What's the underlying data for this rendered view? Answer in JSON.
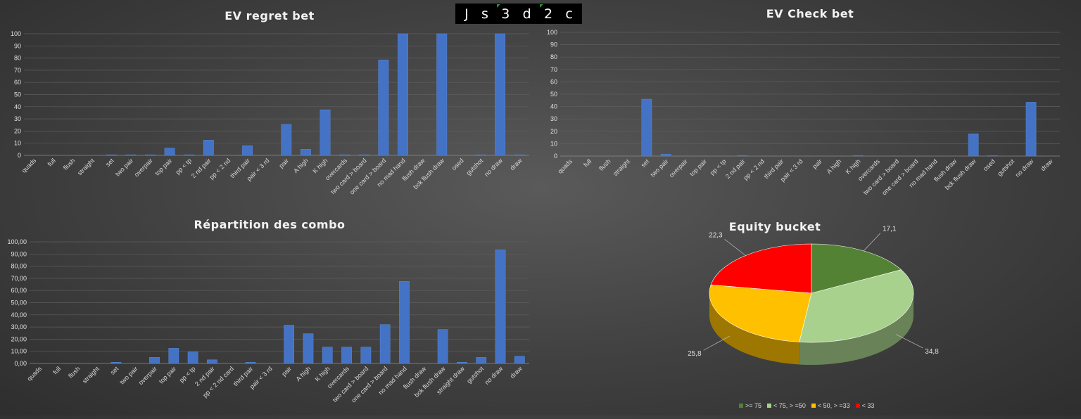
{
  "board": {
    "cards": [
      "J",
      "s",
      "3",
      "d",
      "2",
      "c"
    ]
  },
  "charts": [
    {
      "type": "bar",
      "title": "EV regret bet",
      "categories": [
        "quads",
        "full",
        "flush",
        "straight",
        "set",
        "two pair",
        "overpair",
        "top pair",
        "pp < tp",
        "2 nd pair",
        "pp < 2 nd",
        "third pair",
        "pair < 3 rd",
        "pair",
        "A high",
        "K high",
        "overcards",
        "two card > board",
        "one card > board",
        "no mad hand",
        "flush draw",
        "bck flush draw",
        "osed",
        "gutshot",
        "no draw",
        "draw"
      ],
      "values": [
        0,
        0,
        0,
        0,
        0.5,
        0.5,
        0.5,
        6,
        0.5,
        12.5,
        0,
        8,
        0,
        25.5,
        5,
        37.5,
        0.5,
        0.5,
        78.5,
        100,
        0,
        100,
        0,
        0.5,
        100,
        0.5
      ],
      "ylim": [
        0,
        100
      ],
      "yticks": [
        "0",
        "10",
        "20",
        "30",
        "40",
        "50",
        "60",
        "70",
        "80",
        "90",
        "100"
      ],
      "bar_color": "#4472c4"
    },
    {
      "type": "bar",
      "title": "EV Check bet",
      "categories": [
        "quads",
        "full",
        "flush",
        "straight",
        "set",
        "two pair",
        "overpair",
        "top pair",
        "pp < tp",
        "2 nd pair",
        "pp < 2 nd",
        "third pair",
        "pair < 3 rd",
        "pair",
        "A high",
        "K high",
        "overcards",
        "two card > board",
        "one card > board",
        "no mad hand",
        "flush draw",
        "bck flush draw",
        "osed",
        "gutshot",
        "no draw",
        "draw"
      ],
      "values": [
        0,
        0,
        0,
        0,
        46,
        1.5,
        0,
        0,
        0,
        0.3,
        0,
        0,
        0,
        0,
        0,
        0.3,
        0,
        0,
        0,
        0,
        0,
        18,
        0.3,
        0,
        43.5,
        0
      ],
      "ylim": [
        0,
        100
      ],
      "yticks": [
        "0",
        "10",
        "20",
        "30",
        "40",
        "50",
        "60",
        "70",
        "80",
        "90",
        "100"
      ],
      "bar_color": "#4472c4"
    },
    {
      "type": "bar",
      "title": "Répartition des combo",
      "categories": [
        "quads",
        "full",
        "flush",
        "straight",
        "set",
        "two pair",
        "overpair",
        "top pair",
        "pp < tp",
        "2 nd pair",
        "pp < 2 nd card",
        "third pair",
        "pair < 3 rd",
        "pair",
        "A high",
        "K high",
        "overcards",
        "two card > board",
        "one card > board",
        "no mad hand",
        "flush draw",
        "bck flush draw",
        "straight draw",
        "gutshot",
        "no draw",
        "draw"
      ],
      "values": [
        0,
        0,
        0,
        0,
        1,
        0,
        5,
        12.5,
        9.5,
        3,
        0,
        1,
        0,
        31.5,
        24.5,
        13.5,
        13.5,
        13.5,
        32,
        67.5,
        0,
        28,
        1,
        5,
        93.5,
        6
      ],
      "ylim": [
        0,
        100
      ],
      "yticks": [
        "0,00",
        "10,00",
        "20,00",
        "30,00",
        "40,00",
        "50,00",
        "60,00",
        "70,00",
        "80,00",
        "90,00",
        "100,00"
      ],
      "bar_color": "#4472c4"
    },
    {
      "type": "pie",
      "title": "Equity bucket",
      "slices": [
        {
          "label": ">= 75",
          "value": 17.1,
          "value_label": "17,1",
          "color": "#548235"
        },
        {
          "label": "< 75, > =50",
          "value": 34.8,
          "value_label": "34,8",
          "color": "#a9d18e"
        },
        {
          "label": "< 50, > =33",
          "value": 25.8,
          "value_label": "25,8",
          "color": "#ffc000"
        },
        {
          "label": "< 33",
          "value": 22.3,
          "value_label": "22,3",
          "color": "#ff0000"
        }
      ]
    }
  ]
}
